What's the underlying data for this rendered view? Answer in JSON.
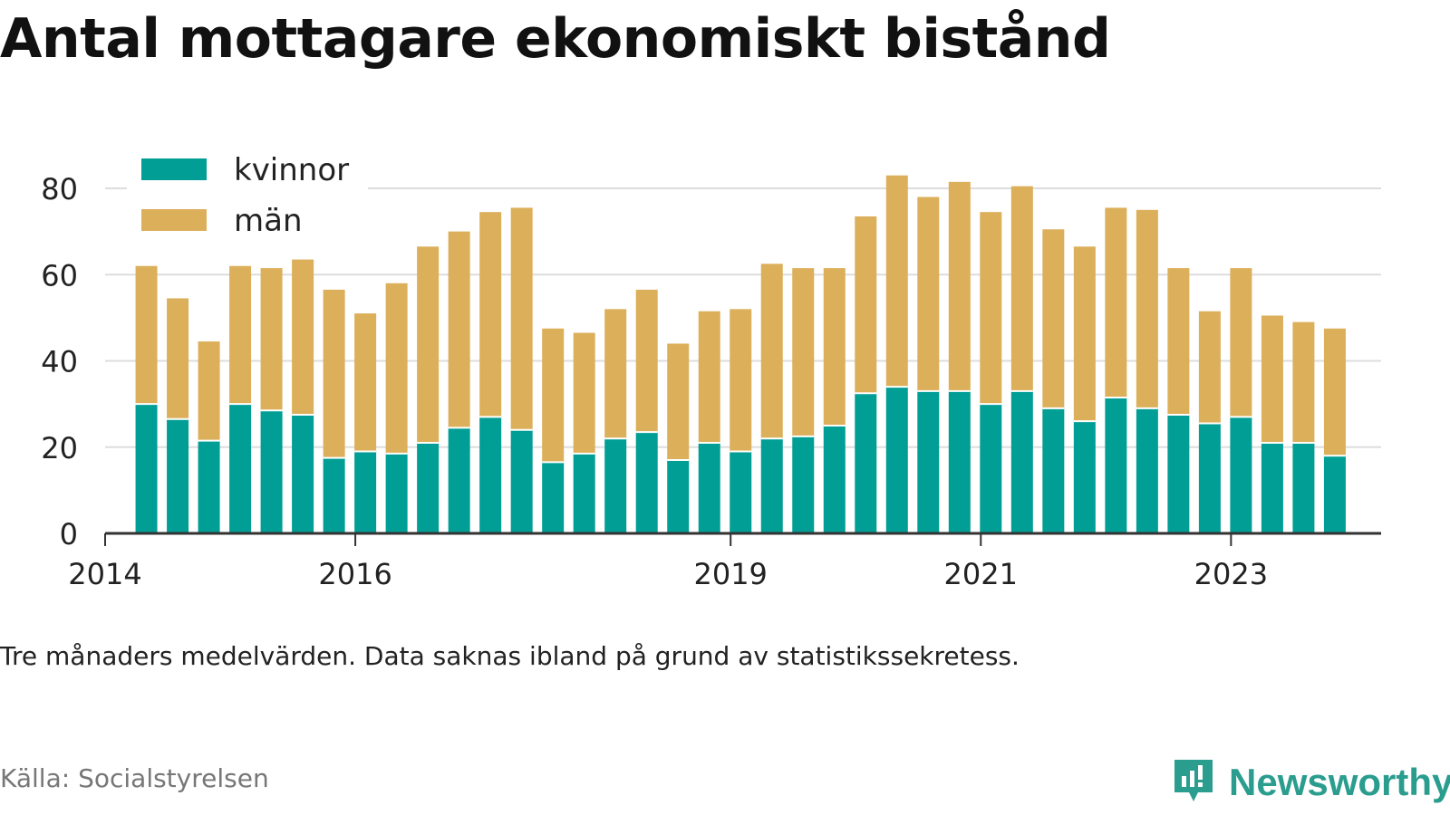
{
  "title": "Antal mottagare ekonomiskt bistånd",
  "note": "Tre månaders medelvärden. Data saknas ibland på grund av statistikssekretess.",
  "source": "Källa: Socialstyrelsen",
  "brand": {
    "name": "Newsworthy",
    "icon": "newsworthy-logo-icon",
    "color": "#2a9d8f"
  },
  "colors": {
    "kvinnor": "#009e94",
    "man": "#dcaf5a",
    "grid": "#dddddd",
    "axis": "#333333",
    "text": "#222222"
  },
  "chart_data": {
    "type": "bar",
    "stacked": true,
    "legend": {
      "position": "top-left",
      "entries": [
        "kvinnor",
        "män"
      ]
    },
    "ylim": [
      0,
      85
    ],
    "yticks": [
      "0",
      "20",
      "40",
      "60",
      "80"
    ],
    "ytick_values": [
      0,
      20,
      40,
      60,
      80
    ],
    "grid": true,
    "xlim": [
      2014.0,
      2024.2
    ],
    "xticks": [
      "2014",
      "2016",
      "2019",
      "2021",
      "2023"
    ],
    "xtick_values": [
      2014.0,
      2016.0,
      2019.0,
      2021.0,
      2023.0
    ],
    "x": [
      2014.33,
      2014.58,
      2014.83,
      2015.08,
      2015.33,
      2015.58,
      2015.83,
      2016.08,
      2016.33,
      2016.58,
      2016.83,
      2017.08,
      2017.33,
      2017.58,
      2017.83,
      2018.08,
      2018.33,
      2018.58,
      2018.83,
      2019.08,
      2019.33,
      2019.58,
      2019.83,
      2020.08,
      2020.33,
      2020.58,
      2020.83,
      2021.08,
      2021.33,
      2021.58,
      2021.83,
      2022.08,
      2022.33,
      2022.58,
      2022.83,
      2023.08,
      2023.33,
      2023.58,
      2023.83
    ],
    "series": [
      {
        "name": "kvinnor",
        "values": [
          30,
          26.5,
          21.5,
          30,
          28.5,
          27.5,
          17.5,
          19,
          18.5,
          21,
          24.5,
          27,
          24,
          16.5,
          18.5,
          22,
          23.5,
          17,
          21,
          19,
          22,
          22.5,
          25,
          32.5,
          34,
          33,
          33,
          30,
          33,
          29,
          26,
          31.5,
          29,
          27.5,
          25.5,
          27,
          21,
          21,
          18
        ]
      },
      {
        "name": "män",
        "values": [
          32,
          28,
          23,
          32,
          33,
          36,
          39,
          32,
          39.5,
          45.5,
          45.5,
          47.5,
          51.5,
          31,
          28,
          30,
          33,
          27,
          30.5,
          33,
          40.5,
          39,
          36.5,
          41,
          49,
          45,
          48.5,
          44.5,
          47.5,
          41.5,
          40.5,
          44,
          46,
          34,
          26,
          34.5,
          29.5,
          28,
          29.5
        ]
      }
    ]
  }
}
